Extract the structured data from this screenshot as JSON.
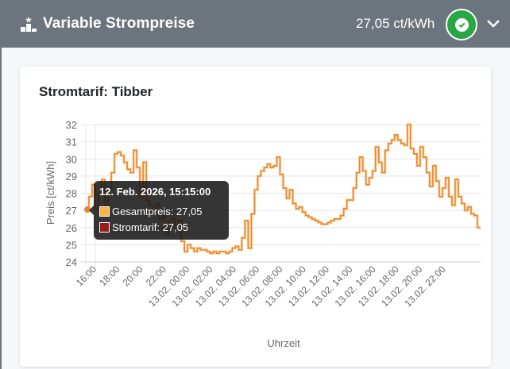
{
  "header": {
    "title": "Variable Strompreise",
    "icon": "podium-star-icon",
    "current_price": "27,05 ct/kWh",
    "status_icon": "check-circle-icon",
    "status_color": "#28a745",
    "expand_icon": "chevron-down-icon",
    "background": "#6c757d"
  },
  "card": {
    "title": "Stromtarif: Tibber"
  },
  "tooltip": {
    "title": "12. Feb. 2026, 15:15:00",
    "rows": [
      {
        "label": "Gesamtpreis: 27,05",
        "color": "#ffb347"
      },
      {
        "label": "Stromtarif: 27,05",
        "color": "#9b1c1c"
      }
    ]
  },
  "chart_data": {
    "type": "line",
    "step": true,
    "title": "Stromtarif: Tibber",
    "xlabel": "Uhrzeit",
    "ylabel": "Preis [ct/kWh]",
    "ylim": [
      24,
      32
    ],
    "yticks": [
      "24",
      "25",
      "26",
      "27",
      "28",
      "29",
      "30",
      "31",
      "32"
    ],
    "xticks": [
      "16:00",
      "18:00",
      "20:00",
      "22:00",
      "13.02. 00:00",
      "13.02. 02:00",
      "13.02. 04:00",
      "13.02. 06:00",
      "13.02. 08:00",
      "13.02. 10:00",
      "13.02. 12:00",
      "13.02. 14:00",
      "13.02. 16:00",
      "13.02. 18:00",
      "13.02. 20:00",
      "13.02. 22:00"
    ],
    "x_start": "12.02. 15:15",
    "interval_minutes": 15,
    "grid": true,
    "legend": "none",
    "series": [
      {
        "name": "Gesamtpreis",
        "color": "#e8892b",
        "values": [
          27.05,
          27.8,
          28.5,
          27.1,
          28.0,
          28.8,
          27.1,
          28.2,
          29.2,
          30.3,
          30.4,
          30.2,
          29.8,
          29.4,
          29.2,
          30.5,
          29.5,
          27.8,
          29.8,
          27.6,
          27.3,
          26.8,
          27.4,
          26.5,
          26.7,
          25.6,
          26.3,
          26.5,
          25.8,
          26.4,
          25.2,
          24.6,
          25.0,
          24.8,
          24.6,
          24.8,
          24.7,
          24.7,
          24.6,
          24.5,
          24.6,
          24.5,
          24.6,
          24.6,
          24.5,
          24.6,
          24.8,
          24.9,
          24.7,
          25.4,
          26.4,
          24.8,
          26.8,
          28.2,
          29.0,
          29.3,
          29.5,
          29.7,
          29.5,
          29.6,
          30.1,
          29.1,
          28.3,
          27.7,
          28.2,
          27.4,
          27.1,
          27.2,
          26.9,
          26.7,
          26.6,
          26.5,
          26.4,
          26.3,
          26.2,
          26.2,
          26.3,
          26.4,
          26.5,
          26.5,
          26.7,
          27.1,
          27.6,
          27.6,
          28.3,
          29.2,
          30.1,
          29.3,
          28.5,
          28.9,
          29.3,
          30.7,
          29.8,
          29.2,
          30.5,
          30.9,
          31.1,
          31.4,
          31.1,
          30.9,
          30.8,
          32.0,
          30.6,
          30.3,
          29.6,
          30.7,
          30.1,
          29.2,
          28.4,
          29.6,
          28.7,
          27.8,
          28.3,
          28.9,
          27.8,
          27.3,
          28.8,
          27.8,
          27.4,
          27.0,
          27.2,
          26.8,
          26.7,
          26.0
        ]
      },
      {
        "name": "Stromtarif",
        "color": "#9b1c1c",
        "values_same_as": "Gesamtpreis"
      }
    ]
  }
}
